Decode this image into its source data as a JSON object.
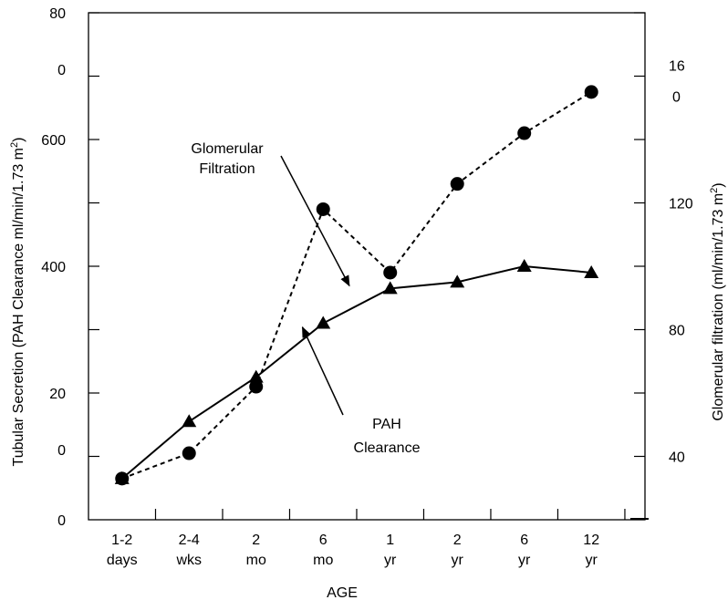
{
  "chart_data": {
    "type": "line",
    "title": "",
    "xlabel": "AGE",
    "categories": [
      {
        "line1": "1-2",
        "line2": "days"
      },
      {
        "line1": "2-4",
        "line2": "wks"
      },
      {
        "line1": "2",
        "line2": "mo"
      },
      {
        "line1": "6",
        "line2": "mo"
      },
      {
        "line1": "1",
        "line2": "yr"
      },
      {
        "line1": "2",
        "line2": "yr"
      },
      {
        "line1": "6",
        "line2": "yr"
      },
      {
        "line1": "12",
        "line2": "yr"
      }
    ],
    "left_axis": {
      "label_parts": {
        "main": "Tubular Secretion (PAH Clearance ml/min/1.73 m",
        "sup": "2",
        "end": ")"
      },
      "ylim": [
        0,
        800
      ],
      "tick_labels": [
        {
          "value": 0,
          "text": "0"
        },
        {
          "value": 200,
          "lines": [
            "20",
            "0"
          ]
        },
        {
          "value": 400,
          "text": "400"
        },
        {
          "value": 600,
          "text": "600"
        },
        {
          "value": 800,
          "lines": [
            "80",
            "0"
          ]
        }
      ]
    },
    "right_axis": {
      "label_parts": {
        "main": "Glomerular filtration (ml/min/1.73 m",
        "sup": "2",
        "end": ")"
      },
      "ylim": [
        20,
        180
      ],
      "tick_labels": [
        {
          "value": 40,
          "text": "40"
        },
        {
          "value": 80,
          "text": "80"
        },
        {
          "value": 120,
          "text": "120"
        },
        {
          "value": 160,
          "lines": [
            "16",
            "0"
          ]
        }
      ]
    },
    "series": [
      {
        "name": "Glomerular Filtration",
        "axis": "right",
        "style": "solid",
        "marker": "triangle",
        "values": [
          33,
          51,
          65,
          82,
          93,
          95,
          100,
          98
        ]
      },
      {
        "name": "PAH Clearance",
        "axis": "left",
        "style": "dashed",
        "marker": "circle",
        "values": [
          65,
          105,
          210,
          490,
          390,
          530,
          610,
          675
        ]
      }
    ],
    "annotations": [
      {
        "lines": [
          "Glomerular",
          "Filtration"
        ],
        "target_series": "Glomerular Filtration"
      },
      {
        "lines": [
          "PAH",
          "Clearance"
        ],
        "target_series": "PAH Clearance"
      }
    ],
    "grid": false,
    "legend": "none"
  }
}
